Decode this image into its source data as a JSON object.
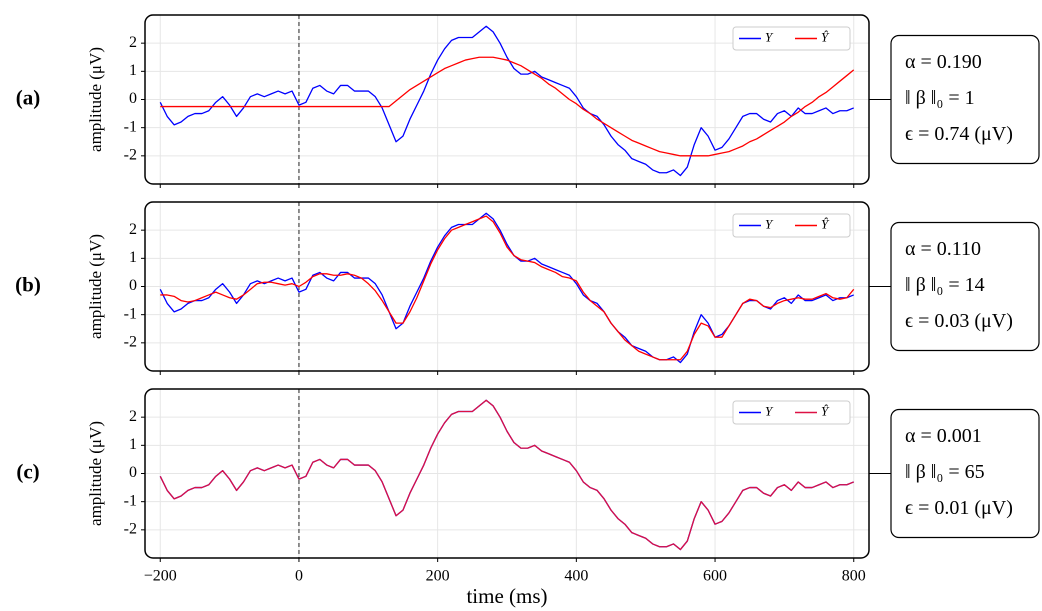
{
  "chart_data": [
    {
      "type": "line",
      "panel_label": "(a)",
      "ylabel": "amplitude (μV)",
      "xlim": [
        -222,
        822
      ],
      "ylim": [
        -3,
        3
      ],
      "xticks": [
        -200,
        0,
        200,
        400,
        600,
        800
      ],
      "yticks": [
        -2,
        -1,
        0,
        1,
        2
      ],
      "show_xtick_labels": false,
      "grid": true,
      "vline": 0,
      "legend": "upper right",
      "x": [
        -200,
        -190,
        -180,
        -170,
        -160,
        -150,
        -140,
        -130,
        -120,
        -110,
        -100,
        -90,
        -80,
        -70,
        -60,
        -50,
        -40,
        -30,
        -20,
        -10,
        0,
        10,
        20,
        30,
        40,
        50,
        60,
        70,
        80,
        90,
        100,
        110,
        120,
        130,
        140,
        150,
        160,
        170,
        180,
        190,
        200,
        210,
        220,
        230,
        240,
        250,
        260,
        270,
        280,
        290,
        300,
        310,
        320,
        330,
        340,
        350,
        360,
        370,
        380,
        390,
        400,
        410,
        420,
        430,
        440,
        450,
        460,
        470,
        480,
        490,
        500,
        510,
        520,
        530,
        540,
        550,
        560,
        570,
        580,
        590,
        600,
        610,
        620,
        630,
        640,
        650,
        660,
        670,
        680,
        690,
        700,
        710,
        720,
        730,
        740,
        750,
        760,
        770,
        780,
        790,
        800
      ],
      "series": [
        {
          "name": "Y",
          "color": "#0000ff",
          "values": [
            -0.1,
            -0.6,
            -0.9,
            -0.8,
            -0.6,
            -0.5,
            -0.5,
            -0.4,
            -0.1,
            0.1,
            -0.2,
            -0.6,
            -0.3,
            0.1,
            0.2,
            0.1,
            0.2,
            0.3,
            0.2,
            0.3,
            -0.2,
            -0.1,
            0.4,
            0.5,
            0.3,
            0.2,
            0.5,
            0.5,
            0.3,
            0.3,
            0.3,
            0.1,
            -0.3,
            -0.9,
            -1.5,
            -1.3,
            -0.7,
            -0.2,
            0.3,
            0.9,
            1.4,
            1.8,
            2.1,
            2.2,
            2.2,
            2.2,
            2.4,
            2.6,
            2.4,
            2.0,
            1.5,
            1.1,
            0.9,
            0.9,
            1.0,
            0.8,
            0.7,
            0.6,
            0.5,
            0.4,
            0.1,
            -0.3,
            -0.5,
            -0.6,
            -0.9,
            -1.3,
            -1.6,
            -1.8,
            -2.1,
            -2.2,
            -2.3,
            -2.5,
            -2.6,
            -2.6,
            -2.5,
            -2.7,
            -2.4,
            -1.6,
            -1.0,
            -1.3,
            -1.8,
            -1.7,
            -1.4,
            -1.0,
            -0.6,
            -0.5,
            -0.5,
            -0.7,
            -0.8,
            -0.5,
            -0.4,
            -0.6,
            -0.3,
            -0.5,
            -0.5,
            -0.4,
            -0.3,
            -0.5,
            -0.4,
            -0.4,
            -0.3
          ]
        },
        {
          "name": "Ŷ",
          "color": "#ff0000",
          "values": [
            -0.25,
            -0.25,
            -0.25,
            -0.25,
            -0.25,
            -0.25,
            -0.25,
            -0.25,
            -0.25,
            -0.25,
            -0.25,
            -0.25,
            -0.25,
            -0.25,
            -0.25,
            -0.25,
            -0.25,
            -0.25,
            -0.25,
            -0.25,
            -0.25,
            -0.25,
            -0.25,
            -0.25,
            -0.25,
            -0.25,
            -0.25,
            -0.25,
            -0.25,
            -0.25,
            -0.25,
            -0.25,
            -0.25,
            -0.25,
            -0.05,
            0.15,
            0.35,
            0.5,
            0.65,
            0.8,
            0.95,
            1.1,
            1.2,
            1.3,
            1.4,
            1.45,
            1.5,
            1.5,
            1.5,
            1.45,
            1.4,
            1.3,
            1.2,
            1.05,
            0.9,
            0.75,
            0.55,
            0.4,
            0.2,
            0.0,
            -0.15,
            -0.35,
            -0.5,
            -0.7,
            -0.85,
            -1.0,
            -1.15,
            -1.3,
            -1.45,
            -1.55,
            -1.65,
            -1.75,
            -1.85,
            -1.9,
            -1.95,
            -2.0,
            -2.0,
            -2.0,
            -2.0,
            -2.0,
            -1.95,
            -1.9,
            -1.85,
            -1.75,
            -1.65,
            -1.5,
            -1.4,
            -1.25,
            -1.1,
            -0.95,
            -0.8,
            -0.6,
            -0.45,
            -0.25,
            -0.1,
            0.1,
            0.25,
            0.45,
            0.65,
            0.85,
            1.05
          ]
        }
      ],
      "annotation": [
        "α = 0.190",
        "‖ β ‖₀ = 1",
        "ϵ = 0.74 (μV)"
      ]
    },
    {
      "type": "line",
      "panel_label": "(b)",
      "ylabel": "amplitude (μV)",
      "xlim": [
        -222,
        822
      ],
      "ylim": [
        -3,
        3
      ],
      "xticks": [
        -200,
        0,
        200,
        400,
        600,
        800
      ],
      "yticks": [
        -2,
        -1,
        0,
        1,
        2
      ],
      "show_xtick_labels": false,
      "grid": true,
      "vline": 0,
      "legend": "upper right",
      "x": [
        -200,
        -190,
        -180,
        -170,
        -160,
        -150,
        -140,
        -130,
        -120,
        -110,
        -100,
        -90,
        -80,
        -70,
        -60,
        -50,
        -40,
        -30,
        -20,
        -10,
        0,
        10,
        20,
        30,
        40,
        50,
        60,
        70,
        80,
        90,
        100,
        110,
        120,
        130,
        140,
        150,
        160,
        170,
        180,
        190,
        200,
        210,
        220,
        230,
        240,
        250,
        260,
        270,
        280,
        290,
        300,
        310,
        320,
        330,
        340,
        350,
        360,
        370,
        380,
        390,
        400,
        410,
        420,
        430,
        440,
        450,
        460,
        470,
        480,
        490,
        500,
        510,
        520,
        530,
        540,
        550,
        560,
        570,
        580,
        590,
        600,
        610,
        620,
        630,
        640,
        650,
        660,
        670,
        680,
        690,
        700,
        710,
        720,
        730,
        740,
        750,
        760,
        770,
        780,
        790,
        800
      ],
      "series": [
        {
          "name": "Y",
          "color": "#0000ff",
          "values": [
            -0.1,
            -0.6,
            -0.9,
            -0.8,
            -0.6,
            -0.5,
            -0.5,
            -0.4,
            -0.1,
            0.1,
            -0.2,
            -0.6,
            -0.3,
            0.1,
            0.2,
            0.1,
            0.2,
            0.3,
            0.2,
            0.3,
            -0.2,
            -0.1,
            0.4,
            0.5,
            0.3,
            0.2,
            0.5,
            0.5,
            0.3,
            0.3,
            0.3,
            0.1,
            -0.3,
            -0.9,
            -1.5,
            -1.3,
            -0.7,
            -0.2,
            0.3,
            0.9,
            1.4,
            1.8,
            2.1,
            2.2,
            2.2,
            2.2,
            2.4,
            2.6,
            2.4,
            2.0,
            1.5,
            1.1,
            0.9,
            0.9,
            1.0,
            0.8,
            0.7,
            0.6,
            0.5,
            0.4,
            0.1,
            -0.3,
            -0.5,
            -0.6,
            -0.9,
            -1.3,
            -1.6,
            -1.8,
            -2.1,
            -2.2,
            -2.3,
            -2.5,
            -2.6,
            -2.6,
            -2.5,
            -2.7,
            -2.4,
            -1.6,
            -1.0,
            -1.3,
            -1.8,
            -1.7,
            -1.4,
            -1.0,
            -0.6,
            -0.5,
            -0.5,
            -0.7,
            -0.8,
            -0.5,
            -0.4,
            -0.6,
            -0.3,
            -0.5,
            -0.5,
            -0.4,
            -0.3,
            -0.5,
            -0.4,
            -0.4,
            -0.3
          ]
        },
        {
          "name": "Ŷ",
          "color": "#ff0000",
          "values": [
            -0.3,
            -0.3,
            -0.35,
            -0.5,
            -0.55,
            -0.5,
            -0.4,
            -0.3,
            -0.2,
            -0.3,
            -0.4,
            -0.45,
            -0.3,
            -0.1,
            0.1,
            0.15,
            0.15,
            0.1,
            0.05,
            0.1,
            0.0,
            0.15,
            0.35,
            0.45,
            0.45,
            0.4,
            0.4,
            0.45,
            0.4,
            0.3,
            0.1,
            -0.15,
            -0.5,
            -0.9,
            -1.3,
            -1.3,
            -0.9,
            -0.4,
            0.2,
            0.8,
            1.3,
            1.7,
            2.0,
            2.1,
            2.2,
            2.3,
            2.4,
            2.5,
            2.3,
            1.9,
            1.4,
            1.1,
            0.95,
            0.9,
            0.85,
            0.7,
            0.6,
            0.5,
            0.35,
            0.3,
            0.2,
            -0.2,
            -0.5,
            -0.7,
            -0.9,
            -1.3,
            -1.6,
            -1.9,
            -2.1,
            -2.3,
            -2.4,
            -2.5,
            -2.6,
            -2.6,
            -2.6,
            -2.6,
            -2.3,
            -1.7,
            -1.3,
            -1.4,
            -1.8,
            -1.8,
            -1.4,
            -1.0,
            -0.6,
            -0.45,
            -0.5,
            -0.7,
            -0.75,
            -0.6,
            -0.5,
            -0.45,
            -0.4,
            -0.45,
            -0.45,
            -0.35,
            -0.25,
            -0.4,
            -0.45,
            -0.4,
            -0.1
          ]
        }
      ],
      "annotation": [
        "α = 0.110",
        "‖ β ‖₀ = 14",
        "ϵ = 0.03 (μV)"
      ]
    },
    {
      "type": "line",
      "panel_label": "(c)",
      "ylabel": "amplitude (μV)",
      "xlabel": "time (ms)",
      "xlim": [
        -222,
        822
      ],
      "ylim": [
        -3,
        3
      ],
      "xticks": [
        {
          "value": -200,
          "label": "−200"
        },
        0,
        200,
        400,
        600,
        800
      ],
      "yticks": [
        -2,
        -1,
        0,
        1,
        2
      ],
      "show_xtick_labels": true,
      "grid": true,
      "vline": 0,
      "legend": "upper right",
      "x": [
        -200,
        -190,
        -180,
        -170,
        -160,
        -150,
        -140,
        -130,
        -120,
        -110,
        -100,
        -90,
        -80,
        -70,
        -60,
        -50,
        -40,
        -30,
        -20,
        -10,
        0,
        10,
        20,
        30,
        40,
        50,
        60,
        70,
        80,
        90,
        100,
        110,
        120,
        130,
        140,
        150,
        160,
        170,
        180,
        190,
        200,
        210,
        220,
        230,
        240,
        250,
        260,
        270,
        280,
        290,
        300,
        310,
        320,
        330,
        340,
        350,
        360,
        370,
        380,
        390,
        400,
        410,
        420,
        430,
        440,
        450,
        460,
        470,
        480,
        490,
        500,
        510,
        520,
        530,
        540,
        550,
        560,
        570,
        580,
        590,
        600,
        610,
        620,
        630,
        640,
        650,
        660,
        670,
        680,
        690,
        700,
        710,
        720,
        730,
        740,
        750,
        760,
        770,
        780,
        790,
        800
      ],
      "series": [
        {
          "name": "Y",
          "color": "#0000ff",
          "values": [
            -0.1,
            -0.6,
            -0.9,
            -0.8,
            -0.6,
            -0.5,
            -0.5,
            -0.4,
            -0.1,
            0.1,
            -0.2,
            -0.6,
            -0.3,
            0.1,
            0.2,
            0.1,
            0.2,
            0.3,
            0.2,
            0.3,
            -0.2,
            -0.1,
            0.4,
            0.5,
            0.3,
            0.2,
            0.5,
            0.5,
            0.3,
            0.3,
            0.3,
            0.1,
            -0.3,
            -0.9,
            -1.5,
            -1.3,
            -0.7,
            -0.2,
            0.3,
            0.9,
            1.4,
            1.8,
            2.1,
            2.2,
            2.2,
            2.2,
            2.4,
            2.6,
            2.4,
            2.0,
            1.5,
            1.1,
            0.9,
            0.9,
            1.0,
            0.8,
            0.7,
            0.6,
            0.5,
            0.4,
            0.1,
            -0.3,
            -0.5,
            -0.6,
            -0.9,
            -1.3,
            -1.6,
            -1.8,
            -2.1,
            -2.2,
            -2.3,
            -2.5,
            -2.6,
            -2.6,
            -2.5,
            -2.7,
            -2.4,
            -1.6,
            -1.0,
            -1.3,
            -1.8,
            -1.7,
            -1.4,
            -1.0,
            -0.6,
            -0.5,
            -0.5,
            -0.7,
            -0.8,
            -0.5,
            -0.4,
            -0.6,
            -0.3,
            -0.5,
            -0.5,
            -0.4,
            -0.3,
            -0.5,
            -0.4,
            -0.4,
            -0.3
          ]
        },
        {
          "name": "Ŷ",
          "color": "#dd1144",
          "values": [
            -0.1,
            -0.6,
            -0.9,
            -0.8,
            -0.6,
            -0.5,
            -0.5,
            -0.4,
            -0.1,
            0.1,
            -0.2,
            -0.6,
            -0.3,
            0.1,
            0.2,
            0.1,
            0.2,
            0.3,
            0.2,
            0.3,
            -0.2,
            -0.1,
            0.4,
            0.5,
            0.3,
            0.2,
            0.5,
            0.5,
            0.3,
            0.3,
            0.3,
            0.1,
            -0.3,
            -0.9,
            -1.5,
            -1.3,
            -0.7,
            -0.2,
            0.3,
            0.9,
            1.4,
            1.8,
            2.1,
            2.2,
            2.2,
            2.2,
            2.4,
            2.6,
            2.4,
            2.0,
            1.5,
            1.1,
            0.9,
            0.9,
            1.0,
            0.8,
            0.7,
            0.6,
            0.5,
            0.4,
            0.1,
            -0.3,
            -0.5,
            -0.6,
            -0.9,
            -1.3,
            -1.6,
            -1.8,
            -2.1,
            -2.2,
            -2.3,
            -2.5,
            -2.6,
            -2.6,
            -2.5,
            -2.7,
            -2.4,
            -1.6,
            -1.0,
            -1.3,
            -1.8,
            -1.7,
            -1.4,
            -1.0,
            -0.6,
            -0.5,
            -0.5,
            -0.7,
            -0.8,
            -0.5,
            -0.4,
            -0.6,
            -0.3,
            -0.5,
            -0.5,
            -0.4,
            -0.3,
            -0.5,
            -0.4,
            -0.4,
            -0.3
          ]
        }
      ],
      "annotation": [
        "α = 0.001",
        "‖ β ‖₀ = 65",
        "ϵ = 0.01 (μV)"
      ]
    }
  ]
}
